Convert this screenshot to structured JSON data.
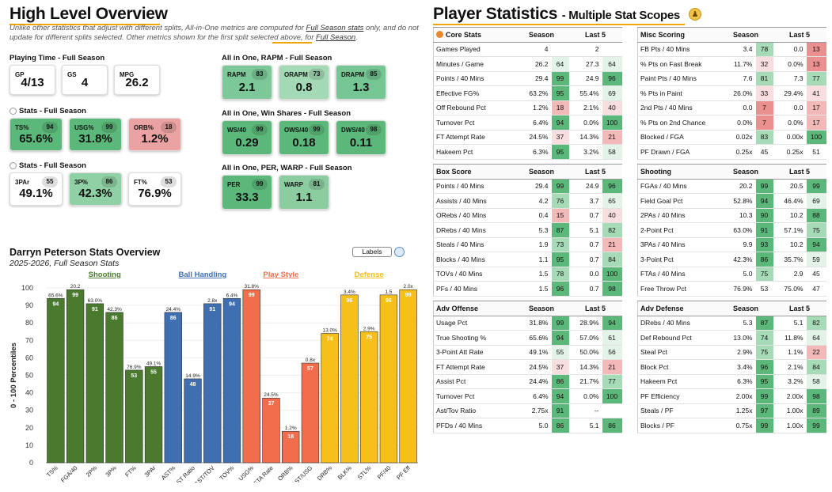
{
  "overview": {
    "title": "High Level Overview",
    "subtitle_a": "Unlike other statistics that adjust with different splits, All-in-One metrics are computed for ",
    "subtitle_b": "Full Season stats",
    "subtitle_c": " only, and do not update for different splits selected. Other metrics shown for the first split selected above, for ",
    "subtitle_d": "Full Season",
    "subtitle_e": "."
  },
  "playing_time": {
    "title": "Playing Time - Full Season",
    "cards": [
      {
        "label": "GP",
        "value": "4/13"
      },
      {
        "label": "GS",
        "value": "4"
      },
      {
        "label": "MPG",
        "value": "26.2"
      }
    ]
  },
  "stats1": {
    "title": "Stats - Full Season",
    "cards": [
      {
        "label": "TS%",
        "value": "65.6%",
        "pct": "94",
        "color": "#5cb87a"
      },
      {
        "label": "USG%",
        "value": "31.8%",
        "pct": "99",
        "color": "#5cb87a"
      },
      {
        "label": "ORB%",
        "value": "1.2%",
        "pct": "18",
        "color": "#eba2a2"
      }
    ]
  },
  "stats2": {
    "title": "Stats - Full Season",
    "cards": [
      {
        "label": "3PAr",
        "value": "49.1%",
        "pct": "55",
        "color": "#ffffff"
      },
      {
        "label": "3P%",
        "value": "42.3%",
        "pct": "86",
        "color": "#8fd0a4"
      },
      {
        "label": "FT%",
        "value": "76.9%",
        "pct": "53",
        "color": "#ffffff"
      }
    ]
  },
  "rapm": {
    "title": "All in One, RAPM - Full Season",
    "cards": [
      {
        "label": "RAPM",
        "value": "2.1",
        "pct": "83",
        "color": "#7cc898"
      },
      {
        "label": "ORAPM",
        "value": "0.8",
        "pct": "73",
        "color": "#a3d9b4"
      },
      {
        "label": "DRAPM",
        "value": "1.3",
        "pct": "85",
        "color": "#76c694"
      }
    ]
  },
  "ws": {
    "title": "All in One, Win Shares - Full Season",
    "cards": [
      {
        "label": "WS/40",
        "value": "0.29",
        "pct": "99",
        "color": "#5cb87a"
      },
      {
        "label": "OWS/40",
        "value": "0.18",
        "pct": "99",
        "color": "#5cb87a"
      },
      {
        "label": "DWS/40",
        "value": "0.11",
        "pct": "98",
        "color": "#5cb87a"
      }
    ]
  },
  "per": {
    "title": "All in One, PER, WARP - Full Season",
    "cards": [
      {
        "label": "PER",
        "value": "33.3",
        "pct": "99",
        "color": "#5cb87a"
      },
      {
        "label": "WARP",
        "value": "1.1",
        "pct": "81",
        "color": "#8ccd9f"
      }
    ]
  },
  "chart_header": {
    "title": "Darryn Peterson Stats Overview",
    "subtitle": "2025-2026, Full Season Stats",
    "labels_button": "Labels"
  },
  "chart_data": {
    "type": "bar",
    "title": "Darryn Peterson Stats Overview",
    "ylabel": "0 - 100 Percentiles",
    "ylim": [
      0,
      100
    ],
    "yticks": [
      "0",
      "10",
      "20",
      "30",
      "40",
      "50",
      "60",
      "70",
      "80",
      "90",
      "100"
    ],
    "groups": [
      {
        "name": "Shooting",
        "color": "#4a7a2e",
        "start": 0,
        "end": 5
      },
      {
        "name": "Ball Handling",
        "color": "#3f6fb0",
        "start": 6,
        "end": 9
      },
      {
        "name": "Play Style",
        "color": "#f26d4b",
        "start": 10,
        "end": 13
      },
      {
        "name": "Defense",
        "color": "#f6bf1a",
        "start": 14,
        "end": 18
      }
    ],
    "categories": [
      "TS%",
      "FGA/40",
      "2P%",
      "3P%",
      "FT%",
      "3PAr",
      "AST%",
      "AST Ratio",
      "AST/TOV",
      "TOV%",
      "USG%",
      "FTA Rate",
      "ORB%",
      "AST/USG",
      "DRB%",
      "BLK%",
      "STL%",
      "PF/40",
      "PF Eff"
    ],
    "values": [
      94,
      99,
      91,
      86,
      53,
      55,
      86,
      48,
      91,
      94,
      99,
      37,
      18,
      57,
      74,
      96,
      75,
      96,
      99
    ],
    "raw_labels": [
      "65.6%",
      "20.2",
      "63.0%",
      "42.3%",
      "76.9%",
      "49.1%",
      "24.4%",
      "14.9%",
      "2.8x",
      "6.4%",
      "31.8%",
      "24.5%",
      "1.2%",
      "0.8x",
      "13.0%",
      "3.4%",
      "2.9%",
      "1.5",
      "2.0x"
    ],
    "colors": [
      "#4a7a2e",
      "#4a7a2e",
      "#4a7a2e",
      "#4a7a2e",
      "#4a7a2e",
      "#4a7a2e",
      "#3f6fb0",
      "#3f6fb0",
      "#3f6fb0",
      "#3f6fb0",
      "#f26d4b",
      "#f26d4b",
      "#f26d4b",
      "#f26d4b",
      "#f6bf1a",
      "#f6bf1a",
      "#f6bf1a",
      "#f6bf1a",
      "#f6bf1a"
    ]
  },
  "player_stats": {
    "title": "Player Statistics",
    "subtitle": "- Multiple Stat Scopes",
    "col_season": "Season",
    "col_last5": "Last 5"
  },
  "tables": [
    {
      "title": "Core Stats",
      "rows": [
        [
          "Games Played",
          "4",
          "",
          "2",
          ""
        ],
        [
          "Minutes / Game",
          "26.2",
          "64",
          "27.3",
          "64"
        ],
        [
          "Points / 40 Mins",
          "29.4",
          "99",
          "24.9",
          "96"
        ],
        [
          "Effective FG%",
          "63.2%",
          "95",
          "55.4%",
          "69"
        ],
        [
          "Off Rebound Pct",
          "1.2%",
          "18",
          "2.1%",
          "40"
        ],
        [
          "Turnover Pct",
          "6.4%",
          "94",
          "0.0%",
          "100"
        ],
        [
          "FT Attempt Rate",
          "24.5%",
          "37",
          "14.3%",
          "21"
        ],
        [
          "Hakeem Pct",
          "6.3%",
          "95",
          "3.2%",
          "58"
        ]
      ]
    },
    {
      "title": "Misc Scoring",
      "rows": [
        [
          "FB Pts / 40 Mins",
          "3.4",
          "78",
          "0.0",
          "13"
        ],
        [
          "% Pts on Fast Break",
          "11.7%",
          "32",
          "0.0%",
          "13"
        ],
        [
          "Paint Pts / 40 Mins",
          "7.6",
          "81",
          "7.3",
          "77"
        ],
        [
          "% Pts in Paint",
          "26.0%",
          "33",
          "29.4%",
          "41"
        ],
        [
          "2nd Pts / 40 Mins",
          "0.0",
          "7",
          "0.0",
          "17"
        ],
        [
          "% Pts on 2nd Chance",
          "0.0%",
          "7",
          "0.0%",
          "17"
        ],
        [
          "Blocked / FGA",
          "0.02x",
          "83",
          "0.00x",
          "100"
        ],
        [
          "PF Drawn / FGA",
          "0.25x",
          "45",
          "0.25x",
          "51"
        ]
      ]
    },
    {
      "title": "Box Score",
      "rows": [
        [
          "Points / 40 Mins",
          "29.4",
          "99",
          "24.9",
          "96"
        ],
        [
          "Assists / 40 Mins",
          "4.2",
          "76",
          "3.7",
          "65"
        ],
        [
          "ORebs / 40 Mins",
          "0.4",
          "15",
          "0.7",
          "40"
        ],
        [
          "DRebs / 40 Mins",
          "5.3",
          "87",
          "5.1",
          "82"
        ],
        [
          "Steals / 40 Mins",
          "1.9",
          "73",
          "0.7",
          "21"
        ],
        [
          "Blocks / 40 Mins",
          "1.1",
          "95",
          "0.7",
          "84"
        ],
        [
          "TOVs / 40 Mins",
          "1.5",
          "78",
          "0.0",
          "100"
        ],
        [
          "PFs / 40 Mins",
          "1.5",
          "96",
          "0.7",
          "98"
        ]
      ]
    },
    {
      "title": "Shooting",
      "rows": [
        [
          "FGAs / 40 Mins",
          "20.2",
          "99",
          "20.5",
          "99"
        ],
        [
          "Field Goal Pct",
          "52.8%",
          "94",
          "46.4%",
          "69"
        ],
        [
          "2PAs / 40 Mins",
          "10.3",
          "90",
          "10.2",
          "88"
        ],
        [
          "2-Point Pct",
          "63.0%",
          "91",
          "57.1%",
          "75"
        ],
        [
          "3PAs / 40 Mins",
          "9.9",
          "93",
          "10.2",
          "94"
        ],
        [
          "3-Point Pct",
          "42.3%",
          "86",
          "35.7%",
          "59"
        ],
        [
          "FTAs / 40 Mins",
          "5.0",
          "75",
          "2.9",
          "45"
        ],
        [
          "Free Throw Pct",
          "76.9%",
          "53",
          "75.0%",
          "47"
        ]
      ]
    },
    {
      "title": "Adv Offense",
      "rows": [
        [
          "Usage Pct",
          "31.8%",
          "99",
          "28.9%",
          "94"
        ],
        [
          "True Shooting %",
          "65.6%",
          "94",
          "57.0%",
          "61"
        ],
        [
          "3-Point Att Rate",
          "49.1%",
          "55",
          "50.0%",
          "56"
        ],
        [
          "FT Attempt Rate",
          "24.5%",
          "37",
          "14.3%",
          "21"
        ],
        [
          "Assist Pct",
          "24.4%",
          "86",
          "21.7%",
          "77"
        ],
        [
          "Turnover Pct",
          "6.4%",
          "94",
          "0.0%",
          "100"
        ],
        [
          "Ast/Tov Ratio",
          "2.75x",
          "91",
          "",
          ""
        ],
        [
          "PFDs / 40 Mins",
          "5.0",
          "86",
          "5.1",
          "86"
        ]
      ]
    },
    {
      "title": "Adv Defense",
      "rows": [
        [
          "DRebs / 40 Mins",
          "5.3",
          "87",
          "5.1",
          "82"
        ],
        [
          "Def Rebound Pct",
          "13.0%",
          "74",
          "11.8%",
          "64"
        ],
        [
          "Steal Pct",
          "2.9%",
          "75",
          "1.1%",
          "22"
        ],
        [
          "Block Pct",
          "3.4%",
          "96",
          "2.1%",
          "84"
        ],
        [
          "Hakeem Pct",
          "6.3%",
          "95",
          "3.2%",
          "58"
        ],
        [
          "PF Efficiency",
          "2.00x",
          "99",
          "2.00x",
          "98"
        ],
        [
          "Steals / PF",
          "1.25x",
          "97",
          "1.00x",
          "89"
        ],
        [
          "Blocks / PF",
          "0.75x",
          "99",
          "1.00x",
          "99"
        ]
      ]
    }
  ],
  "missing_last5": "--"
}
